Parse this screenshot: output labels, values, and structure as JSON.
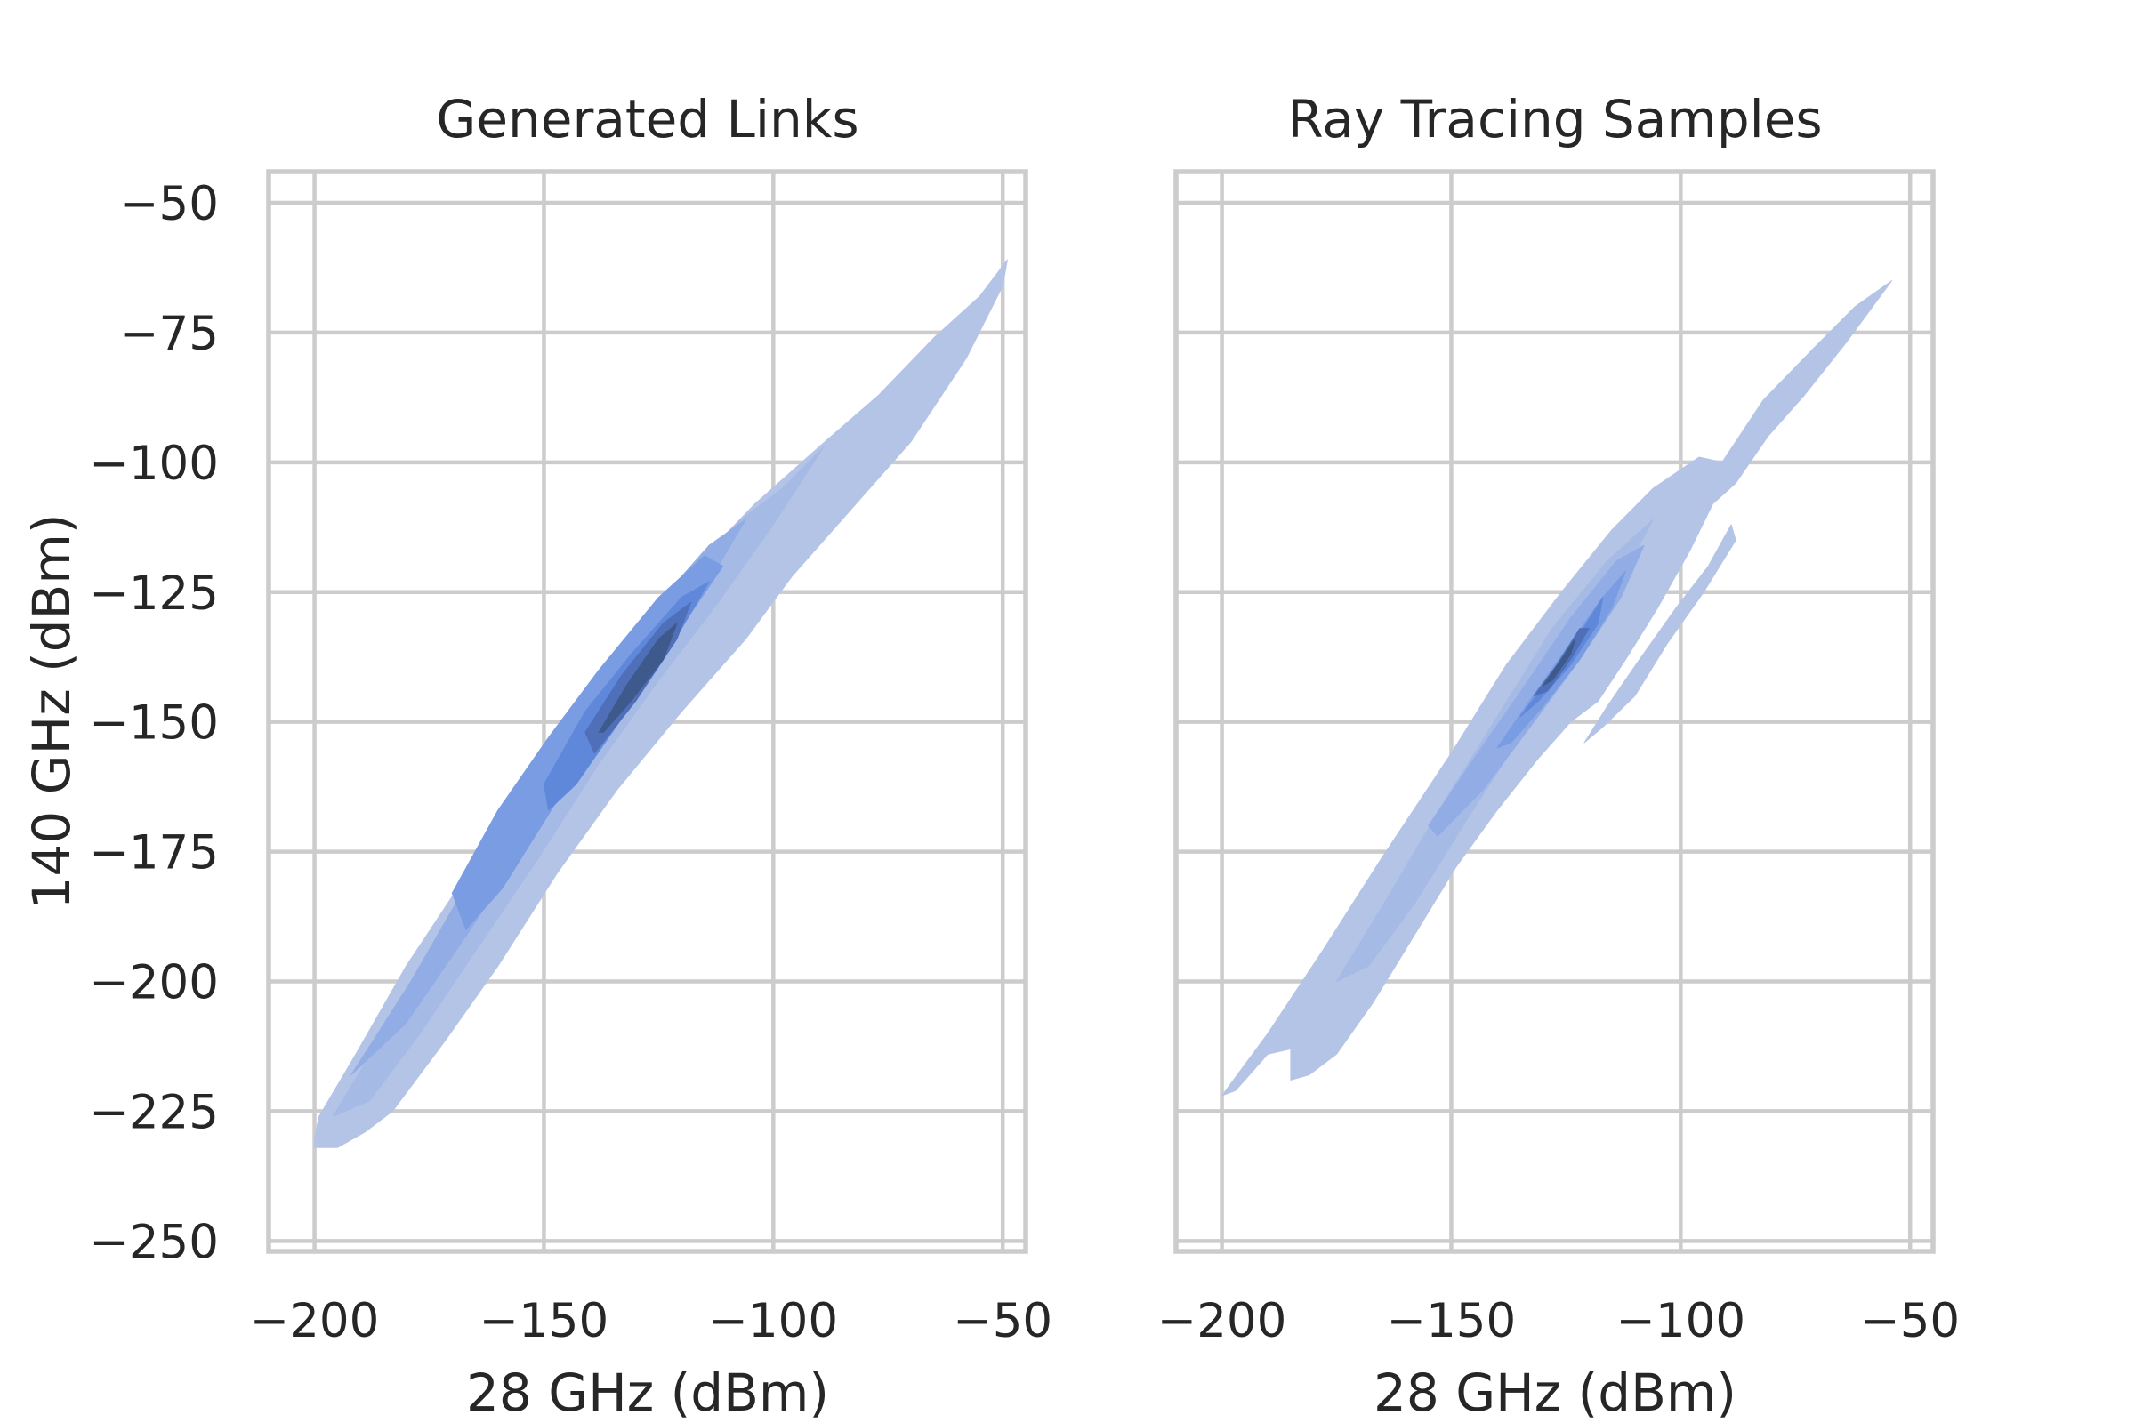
{
  "colors": {
    "density_levels": [
      "#b4c4e7",
      "#a6bae6",
      "#92ade6",
      "#7a9ce3",
      "#5f88db",
      "#4f6fb8",
      "#3e5a8c"
    ],
    "grid": "#cccccc",
    "text": "#262626",
    "background": "#ffffff"
  },
  "chart_data": [
    {
      "type": "kde-contour",
      "title": "Generated Links",
      "xlabel": "28 GHz (dBm)",
      "ylabel": "140 GHz (dBm)",
      "xlim": [
        -210,
        -45
      ],
      "ylim": [
        -252,
        -44
      ],
      "xticks": [
        -200,
        -150,
        -100,
        -50
      ],
      "xtick_labels": [
        "−200",
        "−150",
        "−100",
        "−50"
      ],
      "yticks": [
        -50,
        -75,
        -100,
        -125,
        -150,
        -175,
        -200,
        -225,
        -250
      ],
      "ytick_labels": [
        "−50",
        "−75",
        "−100",
        "−125",
        "−150",
        "−175",
        "−200",
        "−225",
        "−250"
      ],
      "grid": true,
      "levels": [
        {
          "level": 1,
          "polygons": [
            [
              [
                -200,
                -230
              ],
              [
                -199,
                -226
              ],
              [
                -191,
                -214
              ],
              [
                -180,
                -197
              ],
              [
                -168,
                -181
              ],
              [
                -155,
                -164
              ],
              [
                -142,
                -146
              ],
              [
                -130,
                -132
              ],
              [
                -116,
                -119
              ],
              [
                -104,
                -108
              ],
              [
                -90,
                -97
              ],
              [
                -77,
                -87
              ],
              [
                -65,
                -76
              ],
              [
                -55,
                -68
              ],
              [
                -49,
                -61
              ],
              [
                -50,
                -66
              ],
              [
                -58,
                -80
              ],
              [
                -70,
                -96
              ],
              [
                -84,
                -110
              ],
              [
                -96,
                -122
              ],
              [
                -106,
                -134
              ],
              [
                -120,
                -148
              ],
              [
                -134,
                -163
              ],
              [
                -147,
                -179
              ],
              [
                -160,
                -197
              ],
              [
                -172,
                -212
              ],
              [
                -183,
                -225
              ],
              [
                -189,
                -229
              ],
              [
                -195,
                -232
              ],
              [
                -200,
                -232
              ]
            ]
          ]
        },
        {
          "level": 2,
          "polygons": [
            [
              [
                -196,
                -226
              ],
              [
                -185,
                -210
              ],
              [
                -172,
                -190
              ],
              [
                -158,
                -170
              ],
              [
                -145,
                -152
              ],
              [
                -132,
                -134
              ],
              [
                -119,
                -121
              ],
              [
                -107,
                -111
              ],
              [
                -98,
                -105
              ],
              [
                -89,
                -97
              ],
              [
                -100,
                -112
              ],
              [
                -112,
                -127
              ],
              [
                -125,
                -142
              ],
              [
                -138,
                -158
              ],
              [
                -151,
                -176
              ],
              [
                -164,
                -193
              ],
              [
                -177,
                -210
              ],
              [
                -188,
                -223
              ]
            ]
          ]
        },
        {
          "level": 3,
          "polygons": [
            [
              [
                -192,
                -218
              ],
              [
                -179,
                -200
              ],
              [
                -166,
                -180
              ],
              [
                -152,
                -161
              ],
              [
                -139,
                -144
              ],
              [
                -126,
                -128
              ],
              [
                -114,
                -116
              ],
              [
                -106,
                -111
              ],
              [
                -116,
                -126
              ],
              [
                -128,
                -140
              ],
              [
                -141,
                -156
              ],
              [
                -153,
                -172
              ],
              [
                -166,
                -190
              ],
              [
                -180,
                -208
              ]
            ]
          ]
        },
        {
          "level": 4,
          "polygons": [
            [
              [
                -170,
                -183
              ],
              [
                -160,
                -167
              ],
              [
                -149,
                -153
              ],
              [
                -138,
                -140
              ],
              [
                -125,
                -126
              ],
              [
                -115,
                -118
              ],
              [
                -111,
                -120
              ],
              [
                -121,
                -133
              ],
              [
                -134,
                -148
              ],
              [
                -147,
                -165
              ],
              [
                -159,
                -182
              ],
              [
                -167,
                -190
              ]
            ]
          ]
        },
        {
          "level": 5,
          "polygons": [
            [
              [
                -150,
                -162
              ],
              [
                -141,
                -148
              ],
              [
                -131,
                -137
              ],
              [
                -120,
                -126
              ],
              [
                -114,
                -123
              ],
              [
                -122,
                -135
              ],
              [
                -132,
                -148
              ],
              [
                -143,
                -162
              ],
              [
                -149,
                -167
              ]
            ]
          ]
        },
        {
          "level": 6,
          "polygons": [
            [
              [
                -141,
                -152
              ],
              [
                -133,
                -141
              ],
              [
                -124,
                -131
              ],
              [
                -118,
                -127
              ],
              [
                -121,
                -134
              ],
              [
                -130,
                -146
              ],
              [
                -139,
                -156
              ]
            ]
          ]
        },
        {
          "level": 7,
          "polygons": [
            [
              [
                -138,
                -152
              ],
              [
                -132,
                -143
              ],
              [
                -125,
                -134
              ],
              [
                -121,
                -131
              ],
              [
                -124,
                -138
              ],
              [
                -131,
                -146
              ],
              [
                -137,
                -152
              ]
            ]
          ]
        }
      ]
    },
    {
      "type": "kde-contour",
      "title": "Ray Tracing Samples",
      "xlabel": "28 GHz (dBm)",
      "ylabel": "",
      "xlim": [
        -210,
        -45
      ],
      "ylim": [
        -252,
        -44
      ],
      "xticks": [
        -200,
        -150,
        -100,
        -50
      ],
      "xtick_labels": [
        "−200",
        "−150",
        "−100",
        "−50"
      ],
      "yticks": [
        -50,
        -75,
        -100,
        -125,
        -150,
        -175,
        -200,
        -225,
        -250
      ],
      "ytick_labels": [],
      "grid": true,
      "levels": [
        {
          "level": 1,
          "polygons": [
            [
              [
                -200,
                -222
              ],
              [
                -190,
                -210
              ],
              [
                -178,
                -194
              ],
              [
                -165,
                -176
              ],
              [
                -150,
                -156
              ],
              [
                -138,
                -139
              ],
              [
                -126,
                -125
              ],
              [
                -115,
                -113
              ],
              [
                -106,
                -105
              ],
              [
                -96,
                -99
              ],
              [
                -91,
                -100
              ],
              [
                -82,
                -88
              ],
              [
                -71,
                -78
              ],
              [
                -62,
                -70
              ],
              [
                -54,
                -65
              ],
              [
                -64,
                -77
              ],
              [
                -73,
                -87
              ],
              [
                -81,
                -95
              ],
              [
                -88,
                -104
              ],
              [
                -93,
                -108
              ],
              [
                -98,
                -117
              ],
              [
                -105,
                -128
              ],
              [
                -112,
                -138
              ],
              [
                -118,
                -146
              ],
              [
                -124,
                -150
              ],
              [
                -131,
                -157
              ],
              [
                -140,
                -167
              ],
              [
                -149,
                -178
              ],
              [
                -158,
                -191
              ],
              [
                -167,
                -204
              ],
              [
                -175,
                -214
              ],
              [
                -181,
                -218
              ],
              [
                -185,
                -219
              ],
              [
                -185,
                -213
              ],
              [
                -190,
                -214
              ],
              [
                -197,
                -221
              ]
            ],
            [
              [
                -121,
                -154
              ],
              [
                -116,
                -147
              ],
              [
                -109,
                -138
              ],
              [
                -101,
                -128
              ],
              [
                -94,
                -120
              ],
              [
                -89,
                -112
              ],
              [
                -88,
                -115
              ],
              [
                -95,
                -125
              ],
              [
                -103,
                -135
              ],
              [
                -110,
                -145
              ],
              [
                -117,
                -151
              ]
            ]
          ]
        },
        {
          "level": 2,
          "polygons": [
            [
              [
                -175,
                -200
              ],
              [
                -164,
                -184
              ],
              [
                -152,
                -166
              ],
              [
                -140,
                -149
              ],
              [
                -128,
                -132
              ],
              [
                -116,
                -119
              ],
              [
                -106,
                -111
              ],
              [
                -114,
                -124
              ],
              [
                -124,
                -138
              ],
              [
                -135,
                -153
              ],
              [
                -146,
                -168
              ],
              [
                -158,
                -185
              ],
              [
                -168,
                -197
              ]
            ]
          ]
        },
        {
          "level": 3,
          "polygons": [
            [
              [
                -155,
                -170
              ],
              [
                -145,
                -157
              ],
              [
                -134,
                -143
              ],
              [
                -124,
                -130
              ],
              [
                -114,
                -119
              ],
              [
                -108,
                -116
              ],
              [
                -113,
                -126
              ],
              [
                -122,
                -138
              ],
              [
                -132,
                -150
              ],
              [
                -143,
                -163
              ],
              [
                -153,
                -172
              ]
            ]
          ]
        },
        {
          "level": 4,
          "polygons": [
            [
              [
                -140,
                -155
              ],
              [
                -133,
                -146
              ],
              [
                -125,
                -136
              ],
              [
                -117,
                -126
              ],
              [
                -112,
                -121
              ],
              [
                -115,
                -128
              ],
              [
                -122,
                -138
              ],
              [
                -130,
                -147
              ],
              [
                -137,
                -154
              ]
            ]
          ]
        },
        {
          "level": 5,
          "polygons": [
            [
              [
                -135,
                -149
              ],
              [
                -129,
                -142
              ],
              [
                -122,
                -133
              ],
              [
                -117,
                -126
              ],
              [
                -118,
                -131
              ],
              [
                -124,
                -139
              ],
              [
                -131,
                -146
              ]
            ]
          ]
        },
        {
          "level": 6,
          "polygons": [
            [
              [
                -132,
                -145
              ],
              [
                -127,
                -139
              ],
              [
                -122,
                -132
              ],
              [
                -120,
                -132
              ],
              [
                -124,
                -138
              ],
              [
                -129,
                -144
              ]
            ]
          ]
        },
        {
          "level": 7,
          "polygons": [
            [
              [
                -130,
                -143
              ],
              [
                -126,
                -138
              ],
              [
                -123,
                -134
              ],
              [
                -124,
                -137
              ],
              [
                -128,
                -142
              ]
            ]
          ]
        }
      ]
    }
  ]
}
